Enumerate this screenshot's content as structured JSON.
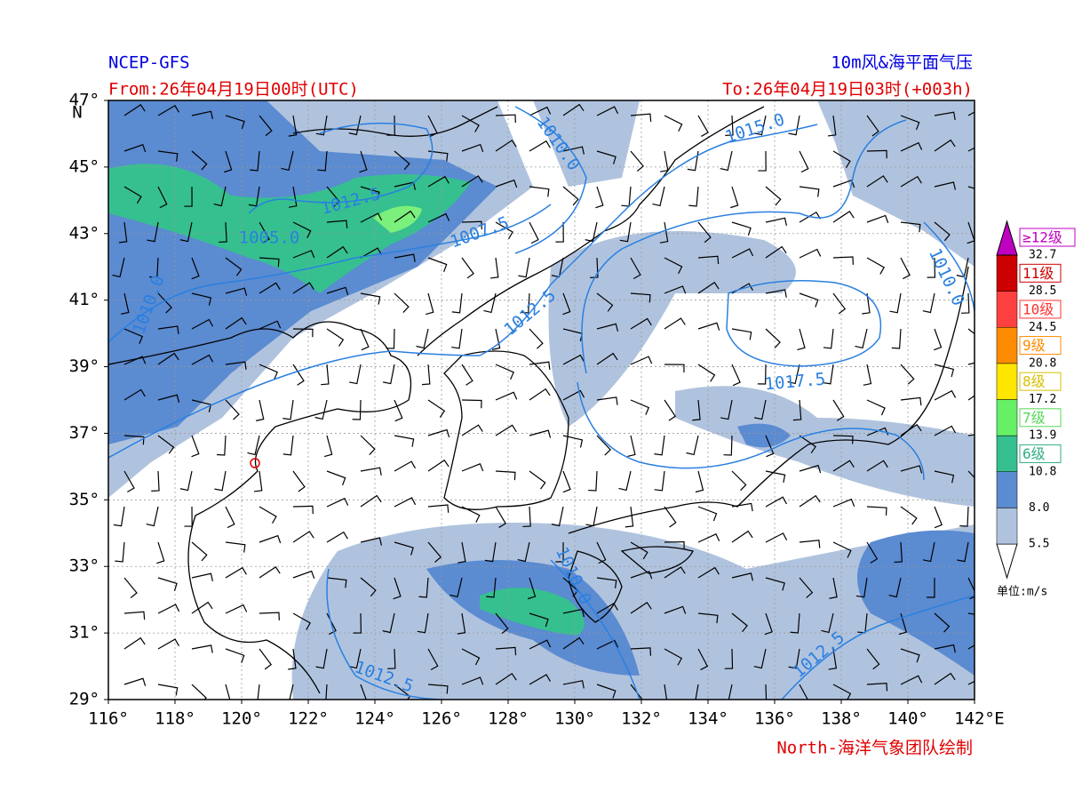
{
  "header": {
    "left_title": "NCEP-GFS",
    "right_title": "10m风&海平面气压",
    "from": "From:26年04月19日00时(UTC)",
    "to": "To:26年04月19日03时(+003h)"
  },
  "axes": {
    "lon_ticks": [
      "116°",
      "118°",
      "120°",
      "122°",
      "124°",
      "126°",
      "128°",
      "130°",
      "132°",
      "134°",
      "136°",
      "138°",
      "140°",
      "142°"
    ],
    "lon_unit": "E",
    "lat_ticks": [
      "47°",
      "45°",
      "43°",
      "41°",
      "39°",
      "37°",
      "35°",
      "33°",
      "31°",
      "29°"
    ],
    "lat_unit": "N"
  },
  "contour_labels": [
    "1012.5",
    "1005.0",
    "1007.5",
    "1010.0",
    "1015.0",
    "1010.0",
    "1012.5",
    "1017.5",
    "1010.0",
    "1012.5",
    "1012.5",
    "1010.0"
  ],
  "legend": {
    "levels": [
      "5.5",
      "8.0",
      "10.8",
      "13.9",
      "17.2",
      "20.8",
      "24.5",
      "28.5",
      "32.7"
    ],
    "classes": [
      "6级",
      "7级",
      "8级",
      "9级",
      "10级",
      "11级",
      "≥12级"
    ],
    "unit": "单位:m/s"
  },
  "footer": "North-海洋气象团队绘制"
}
